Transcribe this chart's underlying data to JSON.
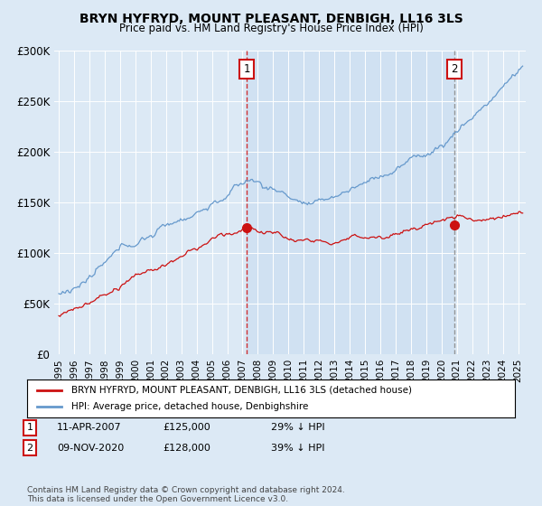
{
  "title": "BRYN HYFRYD, MOUNT PLEASANT, DENBIGH, LL16 3LS",
  "subtitle": "Price paid vs. HM Land Registry's House Price Index (HPI)",
  "bg_color": "#dce9f5",
  "plot_bg_color": "#dce9f5",
  "highlight_bg": "#c8ddf0",
  "legend_label_red": "BRYN HYFRYD, MOUNT PLEASANT, DENBIGH, LL16 3LS (detached house)",
  "legend_label_blue": "HPI: Average price, detached house, Denbighshire",
  "footnote": "Contains HM Land Registry data © Crown copyright and database right 2024.\nThis data is licensed under the Open Government Licence v3.0.",
  "sale1_date": "11-APR-2007",
  "sale1_price": 125000,
  "sale1_label": "29% ↓ HPI",
  "sale2_date": "09-NOV-2020",
  "sale2_price": 128000,
  "sale2_label": "39% ↓ HPI",
  "sale1_x": 2007.27,
  "sale2_x": 2020.86,
  "ylim": [
    0,
    300000
  ],
  "yticks": [
    0,
    50000,
    100000,
    150000,
    200000,
    250000,
    300000
  ],
  "ytick_labels": [
    "£0",
    "£50K",
    "£100K",
    "£150K",
    "£200K",
    "£250K",
    "£300K"
  ],
  "red_color": "#cc1111",
  "blue_color": "#6699cc",
  "xstart": 1995,
  "xend": 2025
}
